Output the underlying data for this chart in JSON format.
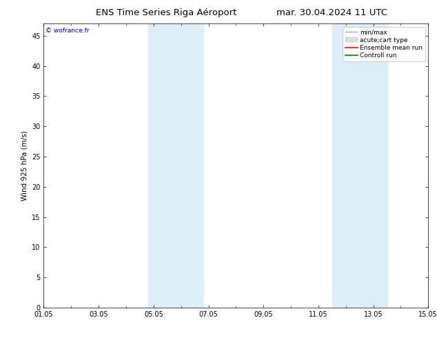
{
  "title_left": "ENS Time Series Riga Aéroport",
  "title_right": "mar. 30.04.2024 11 UTC",
  "ylabel": "Wind 925 hPa (m/s)",
  "background_color": "#ffffff",
  "plot_bg_color": "#ffffff",
  "xtick_labels": [
    "01.05",
    "03.05",
    "05.05",
    "07.05",
    "09.05",
    "11.05",
    "13.05",
    "15.05"
  ],
  "xtick_positions": [
    0,
    2,
    4,
    6,
    8,
    10,
    12,
    14
  ],
  "ylim": [
    0,
    47
  ],
  "ytick_positions": [
    0,
    5,
    10,
    15,
    20,
    25,
    30,
    35,
    40,
    45
  ],
  "ytick_labels": [
    "0",
    "5",
    "10",
    "15",
    "20",
    "25",
    "30",
    "35",
    "40",
    "45"
  ],
  "shaded_bands": [
    {
      "x_start": 3.8,
      "x_end": 5.8,
      "color": "#ddeef8"
    },
    {
      "x_start": 10.5,
      "x_end": 12.5,
      "color": "#ddeef8"
    }
  ],
  "legend_entries": [
    {
      "label": "min/max",
      "color": "#aaaaaa",
      "lw": 1.0,
      "style": "minmax"
    },
    {
      "label": "acute;cart type",
      "color": "#dddddd",
      "lw": 5,
      "style": "bar"
    },
    {
      "label": "Ensemble mean run",
      "color": "#ff0000",
      "lw": 1.2,
      "style": "line"
    },
    {
      "label": "Controll run",
      "color": "#008000",
      "lw": 1.2,
      "style": "line"
    }
  ],
  "watermark_text": "© wofrance.fr",
  "watermark_color": "#0000cc",
  "title_fontsize": 9.5,
  "axis_label_fontsize": 7.5,
  "tick_fontsize": 7,
  "legend_fontsize": 6.5
}
